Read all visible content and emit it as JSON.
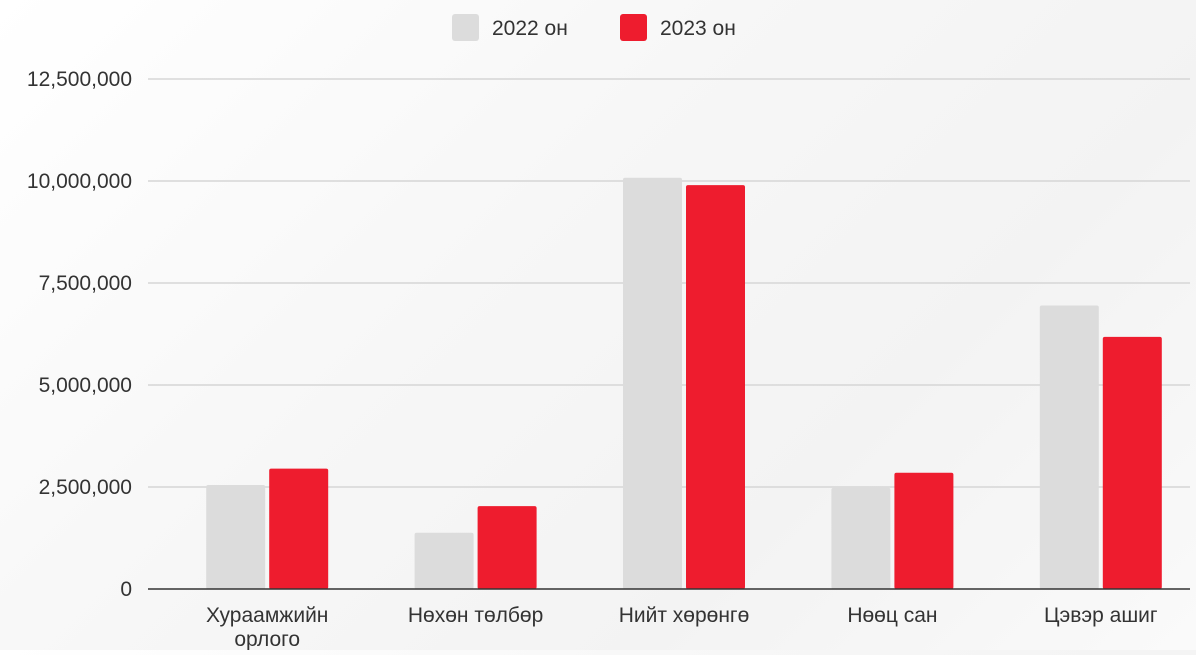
{
  "chart_data": {
    "type": "bar",
    "title": "",
    "xlabel": "",
    "ylabel": "",
    "categories": [
      [
        "Хураамжийн",
        "орлого"
      ],
      [
        "Нөхөн төлбөр"
      ],
      [
        "Нийт хөрөнгө"
      ],
      [
        "Нөөц сан"
      ],
      [
        "Цэвэр ашиг"
      ]
    ],
    "series": [
      {
        "name": "2022 он",
        "color": "#dcdcdc",
        "values": [
          2550000,
          1380000,
          10080000,
          2480000,
          6950000
        ]
      },
      {
        "name": "2023 он",
        "color": "#ee1c2e",
        "values": [
          2950000,
          2030000,
          9900000,
          2850000,
          6180000
        ]
      }
    ],
    "ylim": [
      0,
      12500000
    ],
    "yticks": [
      0,
      2500000,
      5000000,
      7500000,
      10000000,
      12500000
    ],
    "ytick_labels": [
      "0",
      "2,500,000",
      "5,000,000",
      "7,500,000",
      "10,000,000",
      "12,500,000"
    ],
    "grid": true,
    "legend_position": "top-center"
  }
}
